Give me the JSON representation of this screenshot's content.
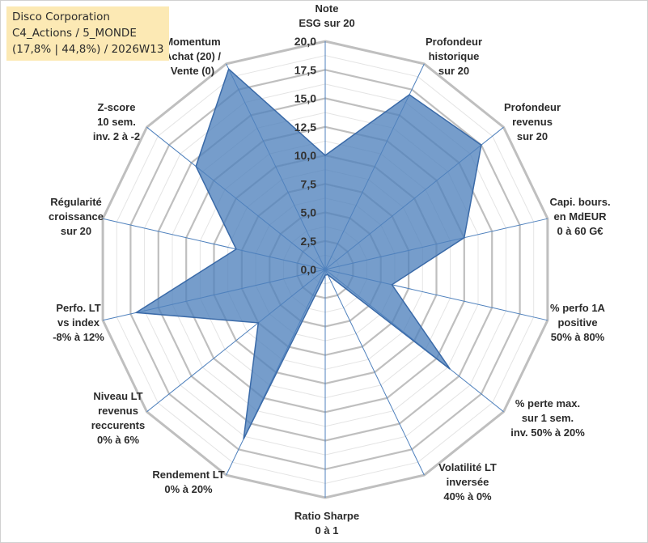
{
  "chart_data": {
    "type": "radar",
    "title_lines": [
      "Disco Corporation",
      "C4_Actions / 5_MONDE",
      "(17,8% | 44,8%) / 2026W13"
    ],
    "rmin": 0,
    "rmax": 20,
    "ticks": [
      "0,0",
      "2,5",
      "5,0",
      "7,5",
      "10,0",
      "12,5",
      "15,0",
      "17,5",
      "20,0"
    ],
    "axes": [
      {
        "label": [
          "Note",
          "ESG sur 20"
        ],
        "value": 10.0
      },
      {
        "label": [
          "Profondeur",
          "historique",
          "sur 20"
        ],
        "value": 17.0
      },
      {
        "label": [
          "Profondeur",
          "revenus",
          "sur 20"
        ],
        "value": 17.5
      },
      {
        "label": [
          "Capi. bours.",
          "en MdEUR",
          "0 à 60 G€"
        ],
        "value": 12.5
      },
      {
        "label": [
          "% perfo 1A",
          "positive",
          "50% à 80%"
        ],
        "value": 6.0
      },
      {
        "label": [
          "% perte max.",
          "sur 1 sem.",
          "inv. 50% à 20%"
        ],
        "value": 14.0
      },
      {
        "label": [
          "Volatilité LT",
          "inversée",
          "40% à 0%"
        ],
        "value": 0.5
      },
      {
        "label": [
          "Ratio Sharpe",
          "0 à 1"
        ],
        "value": 0.5
      },
      {
        "label": [
          "Rendement LT",
          "0% à 20%"
        ],
        "value": 16.5
      },
      {
        "label": [
          "Niveau LT",
          "revenus",
          "reccurents",
          "0% à 6%"
        ],
        "value": 7.5
      },
      {
        "label": [
          "Perfo. LT",
          "vs index",
          "-8% à 12%"
        ],
        "value": 17.0
      },
      {
        "label": [
          "Régularité",
          "croissance",
          "sur 20"
        ],
        "value": 8.0
      },
      {
        "label": [
          "Z-score",
          "10 sem.",
          "inv. 2 à -2"
        ],
        "value": 14.5
      },
      {
        "label": [
          "Momentum",
          "Achat (20) /",
          "Vente (0)"
        ],
        "value": 19.5
      }
    ],
    "colors": {
      "fill": "#4f81bd",
      "stroke": "#3a6aa8",
      "grid": "#bfbfbf",
      "grid_minor": "#e4e4e4",
      "spoke": "#4f81bd"
    },
    "grid": true,
    "legend": "none"
  }
}
